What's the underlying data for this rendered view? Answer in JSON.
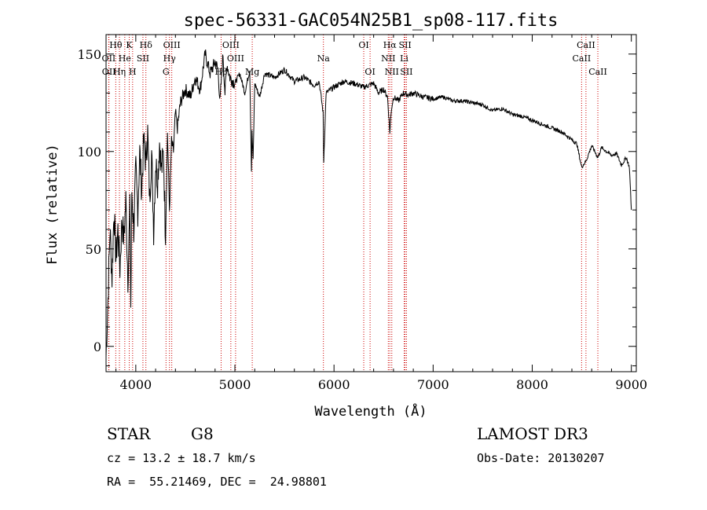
{
  "chart_data": {
    "type": "line",
    "title": "spec-56331-GAC054N25B1_sp08-117.fits",
    "xlabel": "Wavelength (Å)",
    "ylabel": "Flux (relative)",
    "xlim": [
      3700,
      9050
    ],
    "ylim": [
      -13,
      160
    ],
    "xticks": [
      4000,
      5000,
      6000,
      7000,
      8000,
      9000
    ],
    "yticks": [
      0,
      50,
      100,
      150
    ],
    "series": [
      {
        "name": "flux",
        "x": [
          3700,
          3720,
          3740,
          3760,
          3780,
          3800,
          3820,
          3840,
          3860,
          3880,
          3900,
          3920,
          3940,
          3950,
          3960,
          3980,
          4000,
          4020,
          4040,
          4060,
          4080,
          4100,
          4120,
          4140,
          4160,
          4180,
          4200,
          4220,
          4240,
          4260,
          4280,
          4300,
          4320,
          4340,
          4360,
          4380,
          4400,
          4420,
          4450,
          4500,
          4550,
          4600,
          4650,
          4700,
          4750,
          4800,
          4830,
          4850,
          4861,
          4880,
          4900,
          4920,
          4950,
          5000,
          5050,
          5100,
          5150,
          5167,
          5173,
          5184,
          5200,
          5250,
          5300,
          5400,
          5500,
          5600,
          5700,
          5800,
          5850,
          5890,
          5896,
          5920,
          6000,
          6100,
          6200,
          6300,
          6400,
          6450,
          6500,
          6540,
          6563,
          6580,
          6600,
          6650,
          6700,
          6750,
          6800,
          6900,
          7000,
          7100,
          7200,
          7300,
          7400,
          7500,
          7600,
          7700,
          7800,
          7900,
          8000,
          8100,
          8200,
          8300,
          8400,
          8450,
          8498,
          8542,
          8600,
          8662,
          8700,
          8800,
          8850,
          8900,
          8950,
          8980,
          9000
        ],
        "y": [
          -5,
          25,
          60,
          35,
          70,
          45,
          60,
          40,
          65,
          55,
          75,
          35,
          70,
          20,
          80,
          60,
          90,
          70,
          100,
          80,
          105,
          95,
          110,
          75,
          100,
          60,
          95,
          85,
          105,
          90,
          100,
          55,
          110,
          70,
          105,
          100,
          120,
          112,
          125,
          132,
          128,
          138,
          132,
          150,
          140,
          146,
          142,
          125,
          135,
          150,
          130,
          145,
          138,
          135,
          140,
          130,
          142,
          90,
          110,
          95,
          135,
          128,
          140,
          138,
          142,
          136,
          138,
          134,
          136,
          120,
          95,
          130,
          133,
          136,
          135,
          133,
          135,
          130,
          132,
          128,
          110,
          122,
          128,
          126,
          130,
          129,
          130,
          128,
          127,
          128,
          126,
          126,
          125,
          124,
          121,
          122,
          119,
          118,
          116,
          114,
          112,
          110,
          106,
          104,
          92,
          95,
          103,
          97,
          102,
          98,
          99,
          93,
          97,
          92,
          70
        ]
      }
    ],
    "spectral_lines": [
      {
        "name": "Hθ",
        "wl": 3798,
        "row": 0
      },
      {
        "name": "K",
        "wl": 3934,
        "row": 0
      },
      {
        "name": "Hδ",
        "wl": 4102,
        "row": 0
      },
      {
        "name": "OIII",
        "wl": 4363,
        "row": 0
      },
      {
        "name": "OIII",
        "wl": 4959,
        "row": 0
      },
      {
        "name": "Na",
        "wl": 5893,
        "row": 1
      },
      {
        "name": "OI",
        "wl": 6300,
        "row": 0
      },
      {
        "name": "Hα",
        "wl": 6563,
        "row": 0
      },
      {
        "name": "SII",
        "wl": 6717,
        "row": 0
      },
      {
        "name": "CaII",
        "wl": 8542,
        "row": 0
      },
      {
        "name": "OII",
        "wl": 3727,
        "row": 1
      },
      {
        "name": "He",
        "wl": 3889,
        "row": 1
      },
      {
        "name": "SII",
        "wl": 4072,
        "row": 1
      },
      {
        "name": "Hγ",
        "wl": 4340,
        "row": 1
      },
      {
        "name": "OIII",
        "wl": 5007,
        "row": 1
      },
      {
        "name": "NII",
        "wl": 6548,
        "row": 1
      },
      {
        "name": "Li",
        "wl": 6708,
        "row": 1
      },
      {
        "name": "CaII",
        "wl": 8498,
        "row": 1
      },
      {
        "name": "OII",
        "wl": 3729,
        "row": 2
      },
      {
        "name": "Hη",
        "wl": 3835,
        "row": 2
      },
      {
        "name": "H",
        "wl": 3968,
        "row": 2
      },
      {
        "name": "G",
        "wl": 4305,
        "row": 2
      },
      {
        "name": "Hβ",
        "wl": 4861,
        "row": 2
      },
      {
        "name": "Mg",
        "wl": 5175,
        "row": 2
      },
      {
        "name": "OI",
        "wl": 6364,
        "row": 2
      },
      {
        "name": "NII",
        "wl": 6583,
        "row": 2
      },
      {
        "name": "SII",
        "wl": 6731,
        "row": 2
      },
      {
        "name": "CaII",
        "wl": 8662,
        "row": 2
      }
    ]
  },
  "info": {
    "object_class": "STAR",
    "subclass": "G8",
    "survey": "LAMOST DR3",
    "redshift": "cz = 13.2 ± 18.7 km/s",
    "obs_date": "Obs-Date: 20130207",
    "coords": "RA =  55.21469, DEC =  24.98801"
  },
  "colors": {
    "line": "#000000",
    "marker": "#cc0000"
  }
}
